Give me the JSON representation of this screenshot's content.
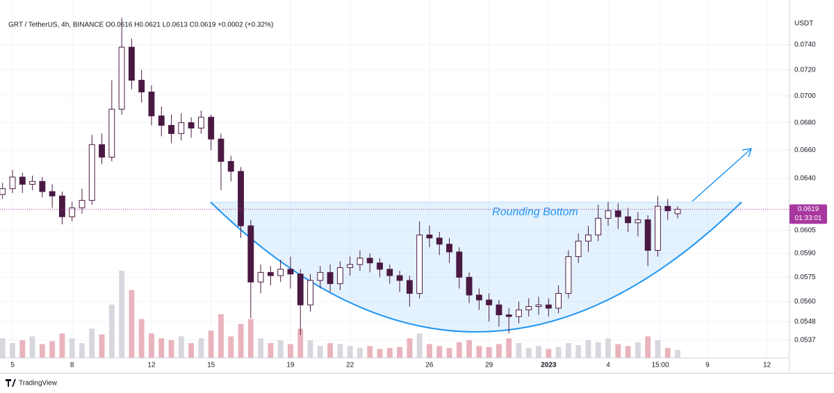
{
  "chart_data": {
    "type": "candlestick",
    "title": "GRT / TetherUS, 4h, BINANCE",
    "ohlc_text": "O0.0616  H0.0621  L0.0613  C0.0619  +0.0002 (+0.32%)",
    "axis_unit": "USDT",
    "annotation": "Rounding Bottom",
    "watermark": "TradingView",
    "log_scale": true,
    "grid": true,
    "up_color": "#ffffff",
    "down_color": "#4a1942",
    "outline_color": "#4a1942",
    "up_volume_color": "#d6d8de",
    "down_volume_color": "#e9b3bd",
    "last_price": {
      "value": 0.0619,
      "label": "0.0619"
    },
    "countdown": "01:33:01",
    "price_color": "#a8379f",
    "xlim": [
      -0.63,
      39.1
    ],
    "xticks": [
      {
        "value": 0,
        "label": "5"
      },
      {
        "value": 3,
        "label": "8"
      },
      {
        "value": 7,
        "label": "12"
      },
      {
        "value": 10,
        "label": "15"
      },
      {
        "value": 14,
        "label": "19"
      },
      {
        "value": 17,
        "label": "22"
      },
      {
        "value": 21,
        "label": "26"
      },
      {
        "value": 24,
        "label": "29"
      },
      {
        "value": 27,
        "label": "2023"
      },
      {
        "value": 30,
        "label": "4"
      },
      {
        "value": 32.625,
        "label": "15:00"
      },
      {
        "value": 35,
        "label": "9"
      },
      {
        "value": 38,
        "label": "12"
      }
    ],
    "ylim": [
      0.0527,
      0.0764
    ],
    "yticks": [
      {
        "value": 0.074,
        "label": "0.0740"
      },
      {
        "value": 0.072,
        "label": "0.0720"
      },
      {
        "value": 0.07,
        "label": "0.0700"
      },
      {
        "value": 0.068,
        "label": "0.0680"
      },
      {
        "value": 0.066,
        "label": "0.0660"
      },
      {
        "value": 0.064,
        "label": "0.0640"
      },
      0.0605,
      {
        "value": 0.059,
        "label": "0.0590"
      },
      0.0575,
      {
        "value": 0.056,
        "label": "0.0560"
      },
      0.0548,
      0.0537
    ],
    "x": [
      -0.5,
      0,
      0.5,
      1,
      1.5,
      2,
      2.5,
      3,
      3.5,
      4,
      4.5,
      5,
      5.5,
      6,
      6.5,
      7,
      7.5,
      8,
      8.5,
      9,
      9.5,
      10,
      10.5,
      11,
      11.5,
      12,
      12.5,
      13,
      13.5,
      14,
      14.5,
      15,
      15.5,
      16,
      16.5,
      17,
      17.5,
      18,
      18.5,
      19,
      19.5,
      20,
      20.5,
      21,
      21.5,
      22,
      22.5,
      23,
      23.5,
      24,
      24.5,
      25,
      25.5,
      26,
      26.5,
      27,
      27.5,
      28,
      28.5,
      29,
      29.5,
      30,
      30.5,
      31,
      31.5,
      32,
      32.5,
      33,
      33.5
    ],
    "open": [
      0.0629,
      0.0633,
      0.0641,
      0.0636,
      0.0638,
      0.0631,
      0.0628,
      0.0614,
      0.062,
      0.0625,
      0.0664,
      0.0655,
      0.069,
      0.0738,
      0.0712,
      0.0703,
      0.0685,
      0.0678,
      0.0672,
      0.068,
      0.0676,
      0.0684,
      0.0668,
      0.0652,
      0.0645,
      0.0608,
      0.0572,
      0.0578,
      0.0576,
      0.058,
      0.0577,
      0.0558,
      0.0573,
      0.0578,
      0.0571,
      0.0581,
      0.0583,
      0.0587,
      0.0584,
      0.058,
      0.0576,
      0.0573,
      0.0565,
      0.0602,
      0.06,
      0.0596,
      0.0591,
      0.0575,
      0.0564,
      0.0561,
      0.0558,
      0.0552,
      0.0551,
      0.0555,
      0.0557,
      0.0558,
      0.0556,
      0.0565,
      0.0588,
      0.0598,
      0.0602,
      0.0613,
      0.0618,
      0.0614,
      0.061,
      0.0612,
      0.0592,
      0.0621,
      0.0616
    ],
    "high": [
      0.0637,
      0.0646,
      0.0644,
      0.0642,
      0.0641,
      0.0636,
      0.0631,
      0.0624,
      0.0633,
      0.0671,
      0.0672,
      0.0712,
      0.0762,
      0.0745,
      0.072,
      0.0708,
      0.0692,
      0.0686,
      0.0687,
      0.0684,
      0.0689,
      0.0686,
      0.0672,
      0.0656,
      0.0648,
      0.0612,
      0.0583,
      0.0582,
      0.0586,
      0.0588,
      0.058,
      0.0577,
      0.0582,
      0.0583,
      0.0585,
      0.0588,
      0.0592,
      0.059,
      0.0587,
      0.0583,
      0.0579,
      0.0576,
      0.0611,
      0.0608,
      0.0604,
      0.06,
      0.0594,
      0.0578,
      0.0568,
      0.0565,
      0.0561,
      0.0556,
      0.056,
      0.0562,
      0.0563,
      0.0562,
      0.057,
      0.0592,
      0.0603,
      0.0608,
      0.0622,
      0.0624,
      0.0623,
      0.062,
      0.0617,
      0.0615,
      0.0628,
      0.0626,
      0.0621
    ],
    "low": [
      0.0626,
      0.063,
      0.063,
      0.0632,
      0.0627,
      0.062,
      0.0609,
      0.0611,
      0.0616,
      0.0622,
      0.065,
      0.0652,
      0.0686,
      0.0705,
      0.0695,
      0.0678,
      0.067,
      0.0665,
      0.0667,
      0.0669,
      0.0672,
      0.066,
      0.0632,
      0.0638,
      0.06,
      0.055,
      0.0565,
      0.057,
      0.0572,
      0.0568,
      0.054,
      0.0554,
      0.0568,
      0.0566,
      0.0567,
      0.0576,
      0.0579,
      0.0578,
      0.0575,
      0.0571,
      0.0566,
      0.0557,
      0.0562,
      0.0594,
      0.0589,
      0.0584,
      0.0568,
      0.0559,
      0.0555,
      0.0548,
      0.0545,
      0.0541,
      0.0547,
      0.0551,
      0.0552,
      0.0551,
      0.0553,
      0.0562,
      0.0584,
      0.0591,
      0.0598,
      0.0608,
      0.0606,
      0.0604,
      0.0601,
      0.0582,
      0.0588,
      0.0612,
      0.0613
    ],
    "close": [
      0.0633,
      0.0641,
      0.0636,
      0.0638,
      0.0631,
      0.0628,
      0.0614,
      0.062,
      0.0625,
      0.0664,
      0.0655,
      0.069,
      0.0738,
      0.0712,
      0.0703,
      0.0685,
      0.0678,
      0.0672,
      0.068,
      0.0676,
      0.0684,
      0.0668,
      0.0652,
      0.0645,
      0.0608,
      0.0572,
      0.0578,
      0.0576,
      0.058,
      0.0577,
      0.0558,
      0.0573,
      0.0578,
      0.0571,
      0.0581,
      0.0583,
      0.0587,
      0.0584,
      0.058,
      0.0576,
      0.0573,
      0.0565,
      0.0602,
      0.06,
      0.0596,
      0.0591,
      0.0575,
      0.0564,
      0.0561,
      0.0558,
      0.0552,
      0.0551,
      0.0555,
      0.0557,
      0.0558,
      0.0556,
      0.0565,
      0.0588,
      0.0598,
      0.0602,
      0.0613,
      0.0618,
      0.0614,
      0.061,
      0.0612,
      0.0592,
      0.0621,
      0.0618,
      0.0619
    ],
    "volume": [
      20,
      15,
      18,
      22,
      14,
      17,
      25,
      20,
      15,
      30,
      24,
      55,
      90,
      70,
      40,
      25,
      20,
      18,
      22,
      15,
      20,
      28,
      45,
      22,
      35,
      40,
      20,
      15,
      18,
      14,
      30,
      18,
      12,
      15,
      14,
      12,
      10,
      12,
      9,
      10,
      11,
      20,
      25,
      14,
      12,
      10,
      16,
      18,
      12,
      11,
      14,
      20,
      15,
      10,
      12,
      9,
      11,
      15,
      13,
      18,
      16,
      20,
      14,
      12,
      16,
      22,
      18,
      10,
      8
    ]
  }
}
